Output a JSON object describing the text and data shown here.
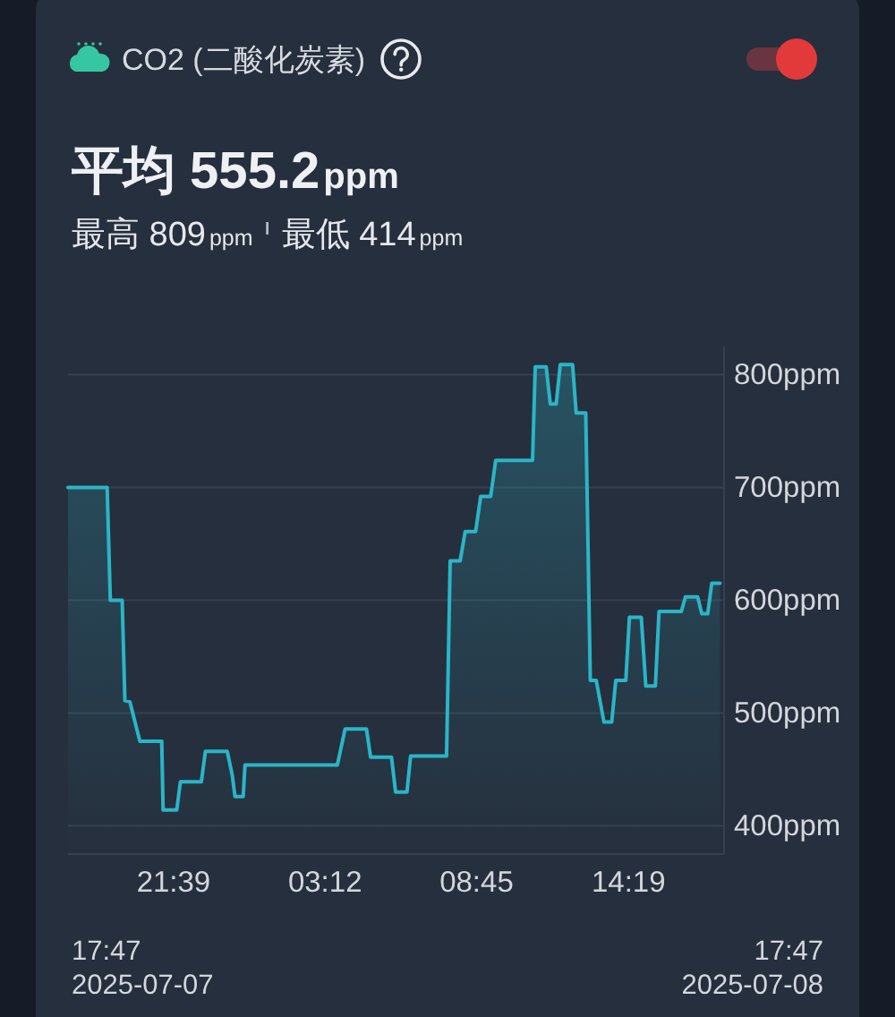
{
  "chart_data": {
    "type": "area",
    "title": "CO2 (二酸化炭素)",
    "subtitle": "平均 555.2ppm",
    "annotations": [
      "最高 809ppm",
      "最低 414ppm",
      "17:47\n2025-07-07",
      "17:47\n2025-07-08"
    ],
    "x": [
      "2025-07-07T17:47",
      "2025-07-07T19:13",
      "2025-07-07T19:20",
      "2025-07-07T19:46",
      "2025-07-07T19:52",
      "2025-07-07T20:03",
      "2025-07-07T20:25",
      "2025-07-07T21:13",
      "2025-07-07T21:16",
      "2025-07-07T21:46",
      "2025-07-07T21:54",
      "2025-07-07T22:40",
      "2025-07-07T22:49",
      "2025-07-07T23:37",
      "2025-07-07T23:48",
      "2025-07-07T23:54",
      "2025-07-08T00:12",
      "2025-07-08T00:16",
      "2025-07-08T03:39",
      "2025-07-08T03:56",
      "2025-07-08T04:43",
      "2025-07-08T04:52",
      "2025-07-08T05:38",
      "2025-07-08T05:47",
      "2025-07-08T06:12",
      "2025-07-08T06:20",
      "2025-07-08T07:39",
      "2025-07-08T07:47",
      "2025-07-08T08:09",
      "2025-07-08T08:20",
      "2025-07-08T08:43",
      "2025-07-08T08:54",
      "2025-07-08T09:16",
      "2025-07-08T09:27",
      "2025-07-08T10:48",
      "2025-07-08T10:54",
      "2025-07-08T11:18",
      "2025-07-08T11:27",
      "2025-07-08T11:40",
      "2025-07-08T11:49",
      "2025-07-08T12:16",
      "2025-07-08T12:24",
      "2025-07-08T12:45",
      "2025-07-08T12:55",
      "2025-07-08T13:08",
      "2025-07-08T13:25",
      "2025-07-08T13:42",
      "2025-07-08T13:51",
      "2025-07-08T14:13",
      "2025-07-08T14:21",
      "2025-07-08T14:47",
      "2025-07-08T14:57",
      "2025-07-08T15:18",
      "2025-07-08T15:26",
      "2025-07-08T16:15",
      "2025-07-08T16:24",
      "2025-07-08T16:51",
      "2025-07-08T17:00",
      "2025-07-08T17:13",
      "2025-07-08T17:22",
      "2025-07-08T17:40"
    ],
    "values": [
      700,
      700,
      600,
      600,
      511,
      510,
      475,
      475,
      414,
      414,
      439,
      439,
      466,
      466,
      445,
      426,
      426,
      454,
      454,
      486,
      486,
      461,
      461,
      430,
      430,
      462,
      462,
      635,
      635,
      661,
      661,
      692,
      692,
      724,
      724,
      807,
      807,
      774,
      774,
      809,
      809,
      766,
      766,
      529,
      529,
      492,
      492,
      529,
      529,
      585,
      585,
      524,
      524,
      590,
      590,
      603,
      603,
      588,
      588,
      615,
      615
    ],
    "color": "#2ab5c7",
    "xlim": [
      "2025-07-07T17:47",
      "2025-07-08T17:47"
    ],
    "xticks": [
      {
        "value": "2025-07-07T21:39",
        "label": "21:39"
      },
      {
        "value": "2025-07-08T03:12",
        "label": "03:12"
      },
      {
        "value": "2025-07-08T08:45",
        "label": "08:45"
      },
      {
        "value": "2025-07-08T14:19",
        "label": "14:19"
      }
    ],
    "ylim": [
      375,
      825
    ],
    "yticks": [
      {
        "value": 400,
        "label": "400ppm"
      },
      {
        "value": 500,
        "label": "500ppm"
      },
      {
        "value": 600,
        "label": "600ppm"
      },
      {
        "value": 700,
        "label": "700ppm"
      },
      {
        "value": 800,
        "label": "800ppm"
      }
    ],
    "grid": "y"
  }
}
